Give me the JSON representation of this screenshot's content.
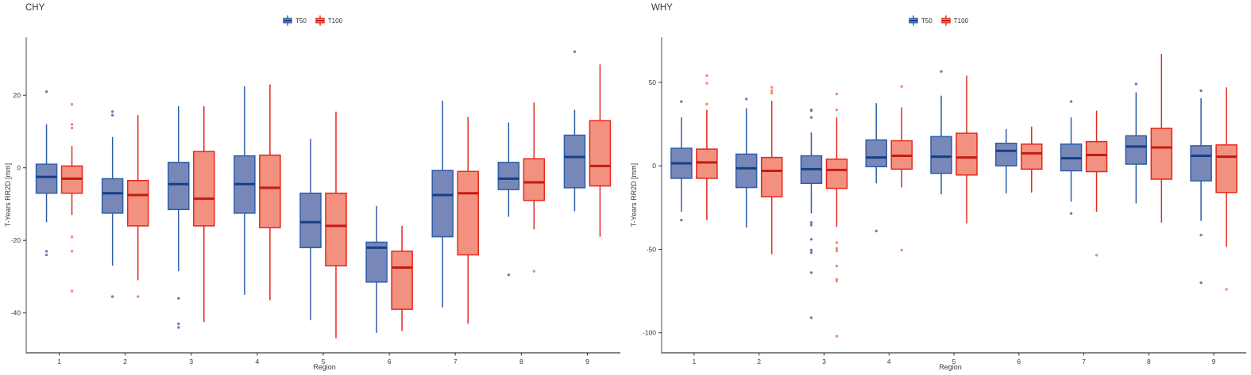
{
  "page": {
    "background": "#ffffff"
  },
  "chart_data": [
    {
      "type": "boxplot",
      "title": "CHY",
      "xlabel": "Region",
      "ylabel": "T-Years RR2D [mm]",
      "legend": [
        "T50",
        "T100"
      ],
      "legend_position": "top-center",
      "grid": false,
      "categories": [
        "1",
        "2",
        "3",
        "4",
        "5",
        "6",
        "7",
        "8",
        "9"
      ],
      "ylim": [
        -51,
        36
      ],
      "yticks": [
        20,
        0,
        -20,
        -40
      ],
      "series": [
        {
          "name": "T50",
          "color": "#2f5da8",
          "fill": "#7788b8",
          "median_color": "#163f87",
          "outlier_color": "#6f7fb1",
          "boxes": [
            {
              "region": "1",
              "whislo": -15,
              "q1": -7,
              "med": -2.5,
              "q3": 1,
              "whishi": 12,
              "outliers": [
                21,
                -23,
                -24
              ]
            },
            {
              "region": "2",
              "whislo": -27,
              "q1": -12.5,
              "med": -7,
              "q3": -3,
              "whishi": 8.5,
              "outliers": [
                15.5,
                14.5,
                -35.5
              ]
            },
            {
              "region": "3",
              "whislo": -28.5,
              "q1": -11.5,
              "med": -4.5,
              "q3": 1.5,
              "whishi": 17,
              "outliers": [
                -36,
                -43,
                -44
              ]
            },
            {
              "region": "4",
              "whislo": -35,
              "q1": -12.5,
              "med": -4.5,
              "q3": 3.3,
              "whishi": 22.5,
              "outliers": []
            },
            {
              "region": "5",
              "whislo": -42,
              "q1": -22,
              "med": -15,
              "q3": -7,
              "whishi": 8,
              "outliers": []
            },
            {
              "region": "6",
              "whislo": -45.5,
              "q1": -31.5,
              "med": -22,
              "q3": -20.5,
              "whishi": -10.5,
              "outliers": []
            },
            {
              "region": "7",
              "whislo": -38.5,
              "q1": -19,
              "med": -7.5,
              "q3": -0.7,
              "whishi": 18.5,
              "outliers": []
            },
            {
              "region": "8",
              "whislo": -13.5,
              "q1": -6,
              "med": -3,
              "q3": 1.5,
              "whishi": 12.5,
              "outliers": [
                -29.5
              ]
            },
            {
              "region": "9",
              "whislo": -12,
              "q1": -5.5,
              "med": 3,
              "q3": 9,
              "whishi": 16,
              "outliers": [
                32
              ]
            }
          ]
        },
        {
          "name": "T100",
          "color": "#e5271d",
          "fill": "#f29180",
          "median_color": "#c41b12",
          "outlier_color": "#ef8a6a",
          "boxes": [
            {
              "region": "1",
              "whislo": -13,
              "q1": -7,
              "med": -3,
              "q3": 0.5,
              "whishi": 6,
              "outliers": [
                17.5,
                12,
                11,
                -19,
                -23,
                -34
              ]
            },
            {
              "region": "2",
              "whislo": -31,
              "q1": -16,
              "med": -7.5,
              "q3": -3.5,
              "whishi": 14.5,
              "outliers": [
                -35.5
              ]
            },
            {
              "region": "3",
              "whislo": -42.5,
              "q1": -16,
              "med": -8.5,
              "q3": 4.5,
              "whishi": 17,
              "outliers": []
            },
            {
              "region": "4",
              "whislo": -36.5,
              "q1": -16.5,
              "med": -5.5,
              "q3": 3.5,
              "whishi": 23,
              "outliers": []
            },
            {
              "region": "5",
              "whislo": -47,
              "q1": -27,
              "med": -16,
              "q3": -7,
              "whishi": 15.5,
              "outliers": []
            },
            {
              "region": "6",
              "whislo": -45,
              "q1": -39,
              "med": -27.5,
              "q3": -23,
              "whishi": -16,
              "outliers": []
            },
            {
              "region": "7",
              "whislo": -43,
              "q1": -24,
              "med": -7,
              "q3": -1,
              "whishi": 14,
              "outliers": []
            },
            {
              "region": "8",
              "whislo": -17,
              "q1": -9,
              "med": -4,
              "q3": 2.5,
              "whishi": 18,
              "outliers": [
                -28.5
              ]
            },
            {
              "region": "9",
              "whislo": -19,
              "q1": -5,
              "med": 0.5,
              "q3": 13,
              "whishi": 28.5,
              "outliers": []
            }
          ]
        }
      ]
    },
    {
      "type": "boxplot",
      "title": "WHY",
      "xlabel": "Region",
      "ylabel": "T-Years RR2D [mm]",
      "legend": [
        "T50",
        "T100"
      ],
      "legend_position": "top-center",
      "grid": false,
      "categories": [
        "1",
        "2",
        "3",
        "4",
        "5",
        "6",
        "7",
        "8",
        "9"
      ],
      "ylim": [
        -112,
        77
      ],
      "yticks": [
        50,
        0,
        -50,
        -100
      ],
      "series": [
        {
          "name": "T50",
          "color": "#2f5da8",
          "fill": "#7788b8",
          "median_color": "#163f87",
          "outlier_color": "#6f7fb1",
          "boxes": [
            {
              "region": "1",
              "whislo": -27.5,
              "q1": -7.5,
              "med": 1.5,
              "q3": 10.5,
              "whishi": 29,
              "outliers": [
                38.5,
                -32.5
              ]
            },
            {
              "region": "2",
              "whislo": -37,
              "q1": -13,
              "med": -1.5,
              "q3": 7,
              "whishi": 34.5,
              "outliers": [
                40
              ]
            },
            {
              "region": "3",
              "whislo": -28.5,
              "q1": -10.5,
              "med": -2,
              "q3": 6,
              "whishi": 20,
              "outliers": [
                33.5,
                33,
                29,
                -34,
                -35.5,
                -44,
                -50.5,
                -52,
                -64,
                -91
              ]
            },
            {
              "region": "4",
              "whislo": -10.5,
              "q1": -0.5,
              "med": 5,
              "q3": 15.5,
              "whishi": 37.5,
              "outliers": [
                -39
              ]
            },
            {
              "region": "5",
              "whislo": -17,
              "q1": -4.5,
              "med": 5.5,
              "q3": 17.5,
              "whishi": 42,
              "outliers": [
                56.5
              ]
            },
            {
              "region": "6",
              "whislo": -16.5,
              "q1": 0,
              "med": 9,
              "q3": 13.5,
              "whishi": 22,
              "outliers": []
            },
            {
              "region": "7",
              "whislo": -21.5,
              "q1": -3,
              "med": 4.5,
              "q3": 13,
              "whishi": 29,
              "outliers": [
                38.5,
                -28.5
              ]
            },
            {
              "region": "8",
              "whislo": -22.5,
              "q1": 1,
              "med": 11.5,
              "q3": 18,
              "whishi": 44,
              "outliers": [
                49
              ]
            },
            {
              "region": "9",
              "whislo": -33,
              "q1": -9,
              "med": 6,
              "q3": 12,
              "whishi": 40.5,
              "outliers": [
                45,
                -41.5,
                -70
              ]
            }
          ]
        },
        {
          "name": "T100",
          "color": "#e5271d",
          "fill": "#f29180",
          "median_color": "#c41b12",
          "outlier_color": "#ef8a6a",
          "boxes": [
            {
              "region": "1",
              "whislo": -32.5,
              "q1": -7.5,
              "med": 2,
              "q3": 10,
              "whishi": 33.5,
              "outliers": [
                54,
                49.5,
                37
              ]
            },
            {
              "region": "2",
              "whislo": -53,
              "q1": -18.5,
              "med": -3,
              "q3": 5,
              "whishi": 39,
              "outliers": [
                47,
                45,
                43.5
              ]
            },
            {
              "region": "3",
              "whislo": -36.5,
              "q1": -13.5,
              "med": -2.5,
              "q3": 4,
              "whishi": 29,
              "outliers": [
                43,
                33.5,
                -46,
                -49.5,
                -51,
                -60,
                -68,
                -69,
                -102
              ]
            },
            {
              "region": "4",
              "whislo": -13,
              "q1": -2,
              "med": 6,
              "q3": 15,
              "whishi": 35,
              "outliers": [
                47.5,
                -50.5
              ]
            },
            {
              "region": "5",
              "whislo": -34.5,
              "q1": -5.5,
              "med": 5,
              "q3": 19.5,
              "whishi": 54,
              "outliers": []
            },
            {
              "region": "6",
              "whislo": -16,
              "q1": -2,
              "med": 7.5,
              "q3": 13,
              "whishi": 23.5,
              "outliers": []
            },
            {
              "region": "7",
              "whislo": -27.5,
              "q1": -3.5,
              "med": 6.5,
              "q3": 14.5,
              "whishi": 33,
              "outliers": [
                -53.5
              ]
            },
            {
              "region": "8",
              "whislo": -34,
              "q1": -8,
              "med": 11,
              "q3": 22.5,
              "whishi": 67,
              "outliers": []
            },
            {
              "region": "9",
              "whislo": -48.5,
              "q1": -16,
              "med": 5.5,
              "q3": 12.5,
              "whishi": 47,
              "outliers": [
                -74
              ]
            }
          ]
        }
      ]
    }
  ]
}
